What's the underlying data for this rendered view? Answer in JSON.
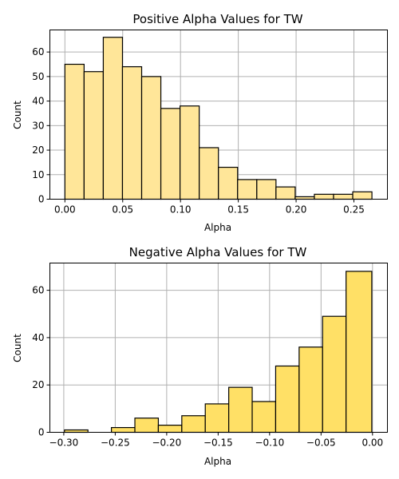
{
  "chart_data": [
    {
      "type": "bar",
      "title": "Positive Alpha Values for TW",
      "xlabel": "Alpha",
      "ylabel": "Count",
      "color": "#ffe699",
      "grid": true,
      "xlim": [
        -0.013,
        0.279
      ],
      "ylim": [
        0,
        69
      ],
      "xticks": [
        0.0,
        0.05,
        0.1,
        0.15,
        0.2,
        0.25
      ],
      "xtick_labels": [
        "0.00",
        "0.05",
        "0.10",
        "0.15",
        "0.20",
        "0.25"
      ],
      "yticks": [
        0,
        10,
        20,
        30,
        40,
        50,
        60
      ],
      "ytick_labels": [
        "0",
        "10",
        "20",
        "30",
        "40",
        "50",
        "60"
      ],
      "bin_edges": [
        0.0,
        0.0166,
        0.0332,
        0.0498,
        0.0664,
        0.083,
        0.0996,
        0.1162,
        0.1328,
        0.1494,
        0.166,
        0.1826,
        0.1992,
        0.2158,
        0.2324,
        0.249,
        0.2656
      ],
      "values": [
        55,
        52,
        66,
        54,
        50,
        37,
        38,
        21,
        13,
        8,
        8,
        5,
        1,
        2,
        2,
        3
      ]
    },
    {
      "type": "bar",
      "title": "Negative Alpha Values for TW",
      "xlabel": "Alpha",
      "ylabel": "Count",
      "color": "#ffe066",
      "grid": true,
      "xlim": [
        -0.3135,
        0.0145
      ],
      "ylim": [
        0,
        71.5
      ],
      "xticks": [
        -0.3,
        -0.25,
        -0.2,
        -0.15,
        -0.1,
        -0.05,
        0.0
      ],
      "xtick_labels": [
        "−0.30",
        "−0.25",
        "−0.20",
        "−0.15",
        "−0.10",
        "−0.05",
        "0.00"
      ],
      "yticks": [
        0,
        20,
        40,
        60
      ],
      "ytick_labels": [
        "0",
        "20",
        "40",
        "60"
      ],
      "bin_edges": [
        -0.2993,
        -0.2765,
        -0.2537,
        -0.2309,
        -0.2081,
        -0.1853,
        -0.1625,
        -0.1397,
        -0.1169,
        -0.0941,
        -0.0713,
        -0.0485,
        -0.0257,
        -0.0007
      ],
      "values": [
        1,
        0,
        2,
        6,
        3,
        7,
        12,
        19,
        13,
        28,
        36,
        49,
        68
      ]
    }
  ]
}
